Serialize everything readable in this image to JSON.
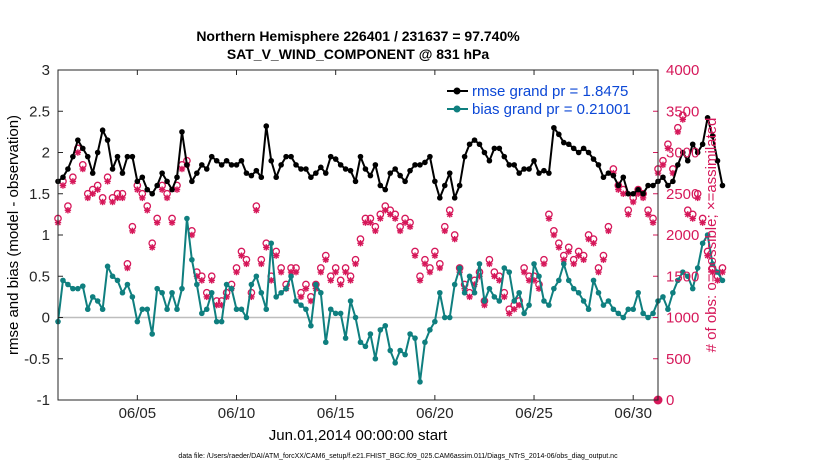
{
  "title_line1": "Northern Hemisphere 226401 / 231637 = 97.740%",
  "title_line2": "SAT_V_WIND_COMPONENT @ 831 hPa",
  "footer": "data file: /Users/raeder/DAI/ATM_forcXX/CAM6_setup/f.e21.FHIST_BGC.f09_025.CAM6assim.011/Diags_NTrS_2014-06/obs_diag_output.nc",
  "colors": {
    "rmse": "#000000",
    "bias": "#0f7f7f",
    "obs": "#d6185a",
    "zero_line": "#bdbdbd",
    "legend_text": "#0b47d6"
  },
  "chart_data": {
    "type": "line",
    "xlabel": "Jun.01,2014 00:00:00 start",
    "ylabel": "rmse and bias (model - observation)",
    "y2label": "# of obs: o=possible; ×=assimilated",
    "xlim": [
      1,
      31.25
    ],
    "ylim": [
      -1,
      3
    ],
    "y2lim": [
      0,
      4000
    ],
    "x_ticks": [
      5,
      10,
      15,
      20,
      25,
      30
    ],
    "x_tick_labels": [
      "06/05",
      "06/10",
      "06/15",
      "06/20",
      "06/25",
      "06/30"
    ],
    "y_ticks": [
      -1,
      -0.5,
      0,
      0.5,
      1,
      1.5,
      2,
      2.5,
      3
    ],
    "y_tick_labels": [
      "-1",
      "-0.5",
      "0",
      "0.5",
      "1",
      "1.5",
      "2",
      "2.5",
      "3"
    ],
    "y2_ticks": [
      0,
      500,
      1000,
      1500,
      2000,
      2500,
      3000,
      3500,
      4000
    ],
    "y2_tick_labels": [
      "0",
      "500",
      "1000",
      "1500",
      "2000",
      "2500",
      "3000",
      "3500",
      "4000"
    ],
    "legend": [
      {
        "label": "rmse grand pr = 1.8475",
        "series": "rmse"
      },
      {
        "label": "bias grand pr = 0.21001",
        "series": "bias"
      }
    ],
    "x_start": 1,
    "x_step": 0.25,
    "series": [
      {
        "name": "rmse grand pr = 1.8475",
        "axis": "left",
        "values": [
          1.65,
          1.7,
          1.8,
          1.95,
          2.15,
          2.05,
          1.95,
          1.75,
          2.0,
          2.27,
          2.15,
          1.8,
          1.95,
          1.75,
          1.95,
          1.95,
          1.65,
          1.7,
          1.55,
          1.5,
          1.6,
          1.75,
          1.65,
          1.55,
          1.7,
          2.25,
          1.85,
          1.65,
          1.75,
          1.85,
          1.8,
          1.95,
          1.9,
          1.85,
          1.9,
          1.85,
          1.85,
          1.9,
          1.75,
          1.72,
          1.78,
          1.7,
          2.32,
          1.9,
          1.7,
          1.85,
          1.95,
          1.95,
          1.85,
          1.8,
          1.8,
          1.7,
          1.75,
          1.82,
          1.75,
          1.95,
          1.92,
          1.85,
          1.8,
          1.78,
          1.65,
          1.95,
          1.8,
          1.72,
          1.85,
          1.6,
          1.55,
          1.75,
          1.8,
          1.72,
          1.65,
          1.78,
          1.85,
          1.85,
          1.88,
          1.95,
          1.65,
          1.45,
          1.6,
          1.75,
          1.45,
          1.6,
          1.95,
          2.1,
          2.15,
          2.1,
          2.0,
          1.9,
          2.05,
          2.05,
          1.95,
          1.85,
          1.85,
          1.75,
          1.8,
          1.8,
          1.9,
          1.75,
          1.78,
          1.75,
          2.3,
          2.22,
          2.12,
          2.1,
          2.05,
          2.0,
          2.05,
          2.0,
          1.92,
          1.85,
          1.7,
          1.75,
          1.72,
          1.6,
          1.7,
          1.5,
          1.5,
          1.55,
          1.5,
          1.6,
          1.6,
          1.65,
          1.7,
          1.6,
          1.65,
          1.85,
          2.0,
          1.9,
          2.1,
          2.0,
          2.1,
          2.42,
          2.2,
          1.9,
          1.6
        ]
      },
      {
        "name": "bias grand pr = 0.21001",
        "axis": "left",
        "values": [
          -0.05,
          0.45,
          0.4,
          0.35,
          0.35,
          0.38,
          0.1,
          0.25,
          0.2,
          0.1,
          0.62,
          0.5,
          0.45,
          0.3,
          0.4,
          0.25,
          -0.05,
          0.1,
          0.1,
          -0.2,
          0.35,
          0.3,
          0.1,
          0.3,
          0.1,
          0.35,
          1.2,
          0.7,
          0.4,
          0.05,
          0.1,
          0.3,
          -0.05,
          -0.05,
          0.4,
          0.35,
          0.1,
          0.1,
          0.0,
          0.4,
          0.5,
          0.3,
          0.1,
          0.9,
          0.25,
          0.3,
          0.35,
          0.5,
          0.2,
          0.15,
          0.1,
          -0.1,
          0.4,
          0.3,
          -0.3,
          0.1,
          0.05,
          0.05,
          -0.25,
          0.2,
          0.0,
          -0.3,
          -0.35,
          -0.2,
          -0.5,
          -0.15,
          -0.1,
          -0.4,
          -0.55,
          -0.4,
          -0.45,
          -0.2,
          -0.25,
          -0.78,
          -0.3,
          -0.15,
          -0.05,
          0.3,
          0.0,
          0.0,
          0.4,
          0.6,
          0.3,
          0.5,
          0.3,
          0.65,
          0.2,
          0.35,
          0.25,
          0.2,
          0.6,
          0.55,
          0.2,
          0.3,
          0.05,
          0.15,
          0.65,
          0.5,
          0.2,
          0.15,
          0.35,
          0.45,
          0.65,
          0.45,
          0.35,
          0.3,
          0.2,
          0.1,
          0.45,
          0.3,
          0.15,
          0.2,
          0.1,
          0.05,
          0.0,
          0.1,
          0.1,
          0.3,
          0.05,
          0.0,
          0.05,
          0.2,
          0.25,
          0.1,
          0.3,
          0.45,
          0.55,
          0.5,
          0.35,
          0.6,
          0.9,
          1.0,
          0.65,
          0.55,
          0.45
        ]
      },
      {
        "name": "possible",
        "axis": "right",
        "marker": "o",
        "values": [
          2200,
          2650,
          2350,
          2700,
          3050,
          2850,
          2500,
          2550,
          2600,
          2450,
          2700,
          2450,
          2500,
          2500,
          1650,
          2100,
          2600,
          2500,
          2350,
          1900,
          2200,
          2600,
          2500,
          2200,
          2600,
          2850,
          2900,
          2050,
          1550,
          1500,
          1300,
          1500,
          1200,
          1200,
          1300,
          1400,
          1600,
          1800,
          1700,
          1300,
          2350,
          1700,
          1900,
          1500,
          1800,
          1600,
          1400,
          1600,
          1600,
          1300,
          1400,
          1250,
          1400,
          1600,
          1750,
          1500,
          1600,
          1450,
          1600,
          1500,
          1700,
          1950,
          2200,
          2200,
          2100,
          2250,
          2350,
          2300,
          2250,
          2100,
          2200,
          2150,
          1800,
          1500,
          1700,
          1600,
          1800,
          1650,
          2100,
          2300,
          2000,
          1600,
          1400,
          1300,
          1450,
          1550,
          1200,
          1700,
          1550,
          1500,
          1300,
          1100,
          1150,
          1200,
          1600,
          1500,
          1500,
          1400,
          1700,
          2250,
          2050,
          1900,
          1750,
          1850,
          1700,
          1800,
          1750,
          2000,
          1950,
          1600,
          1750,
          2100,
          2800,
          2600,
          2550,
          2300,
          2450,
          2550,
          2500,
          2300,
          2200,
          2800,
          2900,
          3100,
          2800,
          3300,
          3450,
          2300,
          2250,
          2500,
          2200,
          1800,
          1600,
          1500,
          1600
        ]
      },
      {
        "name": "assimilated",
        "axis": "right",
        "marker": "x",
        "values": [
          2150,
          2600,
          2300,
          2650,
          3000,
          2800,
          2450,
          2500,
          2550,
          2400,
          2650,
          2400,
          2450,
          2450,
          1600,
          2050,
          2550,
          2450,
          2300,
          1850,
          2150,
          2550,
          2450,
          2150,
          2550,
          2800,
          2850,
          2000,
          1500,
          1450,
          1250,
          1450,
          1150,
          1150,
          1250,
          1350,
          1550,
          1750,
          1650,
          1250,
          2300,
          1650,
          1850,
          1450,
          1750,
          1550,
          1350,
          1550,
          1550,
          1250,
          1350,
          1200,
          1350,
          1550,
          1700,
          1450,
          1550,
          1400,
          1550,
          1450,
          1650,
          1900,
          2150,
          2150,
          2050,
          2200,
          2300,
          2250,
          2200,
          2050,
          2150,
          2100,
          1750,
          1450,
          1650,
          1550,
          1750,
          1600,
          2050,
          2250,
          1950,
          1550,
          1350,
          1250,
          1400,
          1500,
          1150,
          1650,
          1500,
          1450,
          1250,
          1050,
          1100,
          1150,
          1550,
          1450,
          1450,
          1350,
          1650,
          2200,
          2000,
          1850,
          1700,
          1800,
          1650,
          1750,
          1700,
          1950,
          1900,
          1550,
          1700,
          2050,
          2750,
          2550,
          2500,
          2250,
          2400,
          2500,
          2450,
          2250,
          2150,
          2750,
          2850,
          3050,
          2750,
          3250,
          3400,
          2250,
          2200,
          2450,
          2150,
          1750,
          1550,
          1450,
          1550
        ]
      }
    ],
    "extra_point_right": {
      "x": 31.25,
      "y": 0
    }
  }
}
